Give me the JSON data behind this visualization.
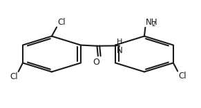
{
  "bg_color": "#ffffff",
  "bond_color": "#1a1a1a",
  "text_color": "#1a1a1a",
  "lw": 1.5,
  "font_size": 8.5,
  "sub_font_size": 6.5,
  "lcx": 0.255,
  "lcy": 0.5,
  "lr": 0.168,
  "rcx": 0.72,
  "rcy": 0.5,
  "rr": 0.168,
  "cl1_label": "Cl",
  "cl2_label": "Cl",
  "cl3_label": "Cl",
  "o_label": "O",
  "nh_label": "NH",
  "nh2_label": "NH",
  "nh2_sub": "2",
  "h_label": "H"
}
